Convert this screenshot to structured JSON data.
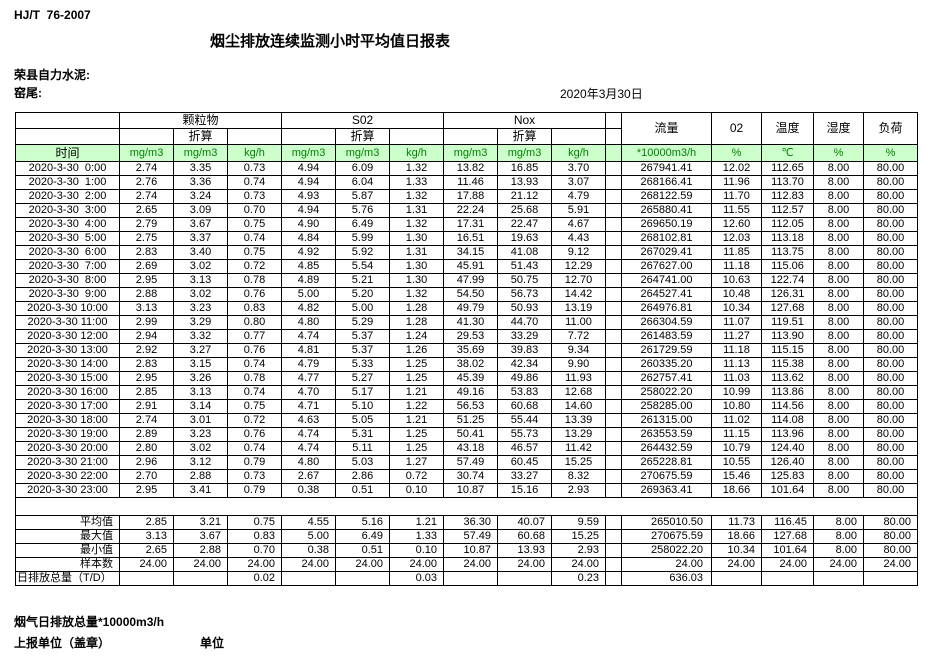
{
  "colors": {
    "header_bg": "#ccffcc",
    "header_text": "#008000"
  },
  "page": {
    "standard": "HJ/T  76-2007",
    "title": "烟尘排放连续监测小时平均值日报表",
    "company": "荣县自力水泥:",
    "location": "窑尾:",
    "date": "2020年3月30日"
  },
  "table": {
    "time_label": "时间",
    "converted_label": "折算",
    "groups": [
      {
        "label": "颗粒物"
      },
      {
        "label": "S02"
      },
      {
        "label": "Nox"
      }
    ],
    "single_headers": [
      "流量",
      "02",
      "温度",
      "湿度",
      "负荷"
    ],
    "units": [
      "mg/m3",
      "mg/m3",
      "kg/h",
      "mg/m3",
      "mg/m3",
      "kg/h",
      "mg/m3",
      "mg/m3",
      "kg/h",
      "*10000m3/h",
      "%",
      "℃",
      "%",
      "%"
    ],
    "rows": [
      {
        "time": "2020-3-30  0:00",
        "values": [
          "2.74",
          "3.35",
          "0.73",
          "4.94",
          "6.09",
          "1.32",
          "13.82",
          "16.85",
          "3.70",
          "267941.41",
          "12.02",
          "112.65",
          "8.00",
          "80.00"
        ]
      },
      {
        "time": "2020-3-30  1:00",
        "values": [
          "2.76",
          "3.36",
          "0.74",
          "4.94",
          "6.04",
          "1.33",
          "11.46",
          "13.93",
          "3.07",
          "268166.41",
          "11.96",
          "113.70",
          "8.00",
          "80.00"
        ]
      },
      {
        "time": "2020-3-30  2:00",
        "values": [
          "2.74",
          "3.24",
          "0.73",
          "4.93",
          "5.87",
          "1.32",
          "17.88",
          "21.12",
          "4.79",
          "268122.59",
          "11.70",
          "112.83",
          "8.00",
          "80.00"
        ]
      },
      {
        "time": "2020-3-30  3:00",
        "values": [
          "2.65",
          "3.09",
          "0.70",
          "4.94",
          "5.76",
          "1.31",
          "22.24",
          "25.68",
          "5.91",
          "265880.41",
          "11.55",
          "112.57",
          "8.00",
          "80.00"
        ]
      },
      {
        "time": "2020-3-30  4:00",
        "values": [
          "2.79",
          "3.67",
          "0.75",
          "4.90",
          "6.49",
          "1.32",
          "17.31",
          "22.47",
          "4.67",
          "269650.19",
          "12.60",
          "112.05",
          "8.00",
          "80.00"
        ]
      },
      {
        "time": "2020-3-30  5:00",
        "values": [
          "2.75",
          "3.37",
          "0.74",
          "4.84",
          "5.99",
          "1.30",
          "16.51",
          "19.63",
          "4.43",
          "268102.81",
          "12.03",
          "113.18",
          "8.00",
          "80.00"
        ]
      },
      {
        "time": "2020-3-30  6:00",
        "values": [
          "2.83",
          "3.40",
          "0.75",
          "4.92",
          "5.92",
          "1.31",
          "34.15",
          "41.08",
          "9.12",
          "267029.41",
          "11.85",
          "113.75",
          "8.00",
          "80.00"
        ]
      },
      {
        "time": "2020-3-30  7:00",
        "values": [
          "2.69",
          "3.02",
          "0.72",
          "4.85",
          "5.54",
          "1.30",
          "45.91",
          "51.43",
          "12.29",
          "267627.00",
          "11.18",
          "115.06",
          "8.00",
          "80.00"
        ]
      },
      {
        "time": "2020-3-30  8:00",
        "values": [
          "2.95",
          "3.13",
          "0.78",
          "4.89",
          "5.21",
          "1.30",
          "47.99",
          "50.75",
          "12.70",
          "264741.00",
          "10.63",
          "122.74",
          "8.00",
          "80.00"
        ]
      },
      {
        "time": "2020-3-30  9:00",
        "values": [
          "2.88",
          "3.02",
          "0.76",
          "5.00",
          "5.20",
          "1.32",
          "54.50",
          "56.73",
          "14.42",
          "264527.41",
          "10.48",
          "126.31",
          "8.00",
          "80.00"
        ]
      },
      {
        "time": "2020-3-30 10:00",
        "values": [
          "3.13",
          "3.23",
          "0.83",
          "4.82",
          "5.00",
          "1.28",
          "49.79",
          "50.93",
          "13.19",
          "264976.81",
          "10.34",
          "127.68",
          "8.00",
          "80.00"
        ]
      },
      {
        "time": "2020-3-30 11:00",
        "values": [
          "2.99",
          "3.29",
          "0.80",
          "4.80",
          "5.29",
          "1.28",
          "41.30",
          "44.70",
          "11.00",
          "266304.59",
          "11.07",
          "119.51",
          "8.00",
          "80.00"
        ]
      },
      {
        "time": "2020-3-30 12:00",
        "values": [
          "2.94",
          "3.32",
          "0.77",
          "4.74",
          "5.37",
          "1.24",
          "29.53",
          "33.29",
          "7.72",
          "261483.59",
          "11.27",
          "113.90",
          "8.00",
          "80.00"
        ]
      },
      {
        "time": "2020-3-30 13:00",
        "values": [
          "2.92",
          "3.27",
          "0.76",
          "4.81",
          "5.37",
          "1.26",
          "35.69",
          "39.83",
          "9.34",
          "261729.59",
          "11.18",
          "115.15",
          "8.00",
          "80.00"
        ]
      },
      {
        "time": "2020-3-30 14:00",
        "values": [
          "2.83",
          "3.15",
          "0.74",
          "4.79",
          "5.33",
          "1.25",
          "38.02",
          "42.34",
          "9.90",
          "260335.20",
          "11.13",
          "115.38",
          "8.00",
          "80.00"
        ]
      },
      {
        "time": "2020-3-30 15:00",
        "values": [
          "2.95",
          "3.26",
          "0.78",
          "4.77",
          "5.27",
          "1.25",
          "45.39",
          "49.86",
          "11.93",
          "262757.41",
          "11.03",
          "113.62",
          "8.00",
          "80.00"
        ]
      },
      {
        "time": "2020-3-30 16:00",
        "values": [
          "2.85",
          "3.13",
          "0.74",
          "4.70",
          "5.17",
          "1.21",
          "49.16",
          "53.83",
          "12.68",
          "258022.20",
          "10.99",
          "113.86",
          "8.00",
          "80.00"
        ]
      },
      {
        "time": "2020-3-30 17:00",
        "values": [
          "2.91",
          "3.14",
          "0.75",
          "4.71",
          "5.10",
          "1.22",
          "56.53",
          "60.68",
          "14.60",
          "258285.00",
          "10.80",
          "114.56",
          "8.00",
          "80.00"
        ]
      },
      {
        "time": "2020-3-30 18:00",
        "values": [
          "2.74",
          "3.01",
          "0.72",
          "4.63",
          "5.05",
          "1.21",
          "51.25",
          "55.44",
          "13.39",
          "261315.00",
          "11.02",
          "114.08",
          "8.00",
          "80.00"
        ]
      },
      {
        "time": "2020-3-30 19:00",
        "values": [
          "2.89",
          "3.23",
          "0.76",
          "4.74",
          "5.31",
          "1.25",
          "50.41",
          "55.73",
          "13.29",
          "263553.59",
          "11.15",
          "113.96",
          "8.00",
          "80.00"
        ]
      },
      {
        "time": "2020-3-30 20:00",
        "values": [
          "2.80",
          "3.02",
          "0.74",
          "4.74",
          "5.11",
          "1.25",
          "43.18",
          "46.57",
          "11.42",
          "264432.59",
          "10.79",
          "124.40",
          "8.00",
          "80.00"
        ]
      },
      {
        "time": "2020-3-30 21:00",
        "values": [
          "2.96",
          "3.12",
          "0.79",
          "4.80",
          "5.03",
          "1.27",
          "57.49",
          "60.45",
          "15.25",
          "265228.81",
          "10.55",
          "126.40",
          "8.00",
          "80.00"
        ]
      },
      {
        "time": "2020-3-30 22:00",
        "values": [
          "2.70",
          "2.88",
          "0.73",
          "2.67",
          "2.86",
          "0.72",
          "30.74",
          "33.27",
          "8.32",
          "270675.59",
          "15.46",
          "125.83",
          "8.00",
          "80.00"
        ]
      },
      {
        "time": "2020-3-30 23:00",
        "values": [
          "2.95",
          "3.41",
          "0.79",
          "0.38",
          "0.51",
          "0.10",
          "10.87",
          "15.16",
          "2.93",
          "269363.41",
          "18.66",
          "101.64",
          "8.00",
          "80.00"
        ]
      }
    ],
    "summary": [
      {
        "label": "平均值",
        "label_align": "right",
        "values": [
          "2.85",
          "3.21",
          "0.75",
          "4.55",
          "5.16",
          "1.21",
          "36.30",
          "40.07",
          "9.59",
          "265010.50",
          "11.73",
          "116.45",
          "8.00",
          "80.00"
        ]
      },
      {
        "label": "最大值",
        "label_align": "right",
        "values": [
          "3.13",
          "3.67",
          "0.83",
          "5.00",
          "6.49",
          "1.33",
          "57.49",
          "60.68",
          "15.25",
          "270675.59",
          "18.66",
          "127.68",
          "8.00",
          "80.00"
        ]
      },
      {
        "label": "最小值",
        "label_align": "right",
        "values": [
          "2.65",
          "2.88",
          "0.70",
          "0.38",
          "0.51",
          "0.10",
          "10.87",
          "13.93",
          "2.93",
          "258022.20",
          "10.34",
          "101.64",
          "8.00",
          "80.00"
        ]
      },
      {
        "label": "样本数",
        "label_align": "right",
        "values": [
          "24.00",
          "24.00",
          "24.00",
          "24.00",
          "24.00",
          "24.00",
          "24.00",
          "24.00",
          "24.00",
          "24.00",
          "24.00",
          "24.00",
          "24.00",
          "24.00"
        ]
      },
      {
        "label": "日排放总量（T/D）",
        "label_align": "left",
        "values": [
          "",
          "",
          "0.02",
          "",
          "",
          "0.03",
          "",
          "",
          "0.23",
          "636.03",
          "",
          "",
          "",
          ""
        ]
      }
    ]
  },
  "footer": {
    "note": "烟气日排放总量*10000m3/h",
    "report_unit": "上报单位（盖章）",
    "unit": "单位"
  }
}
